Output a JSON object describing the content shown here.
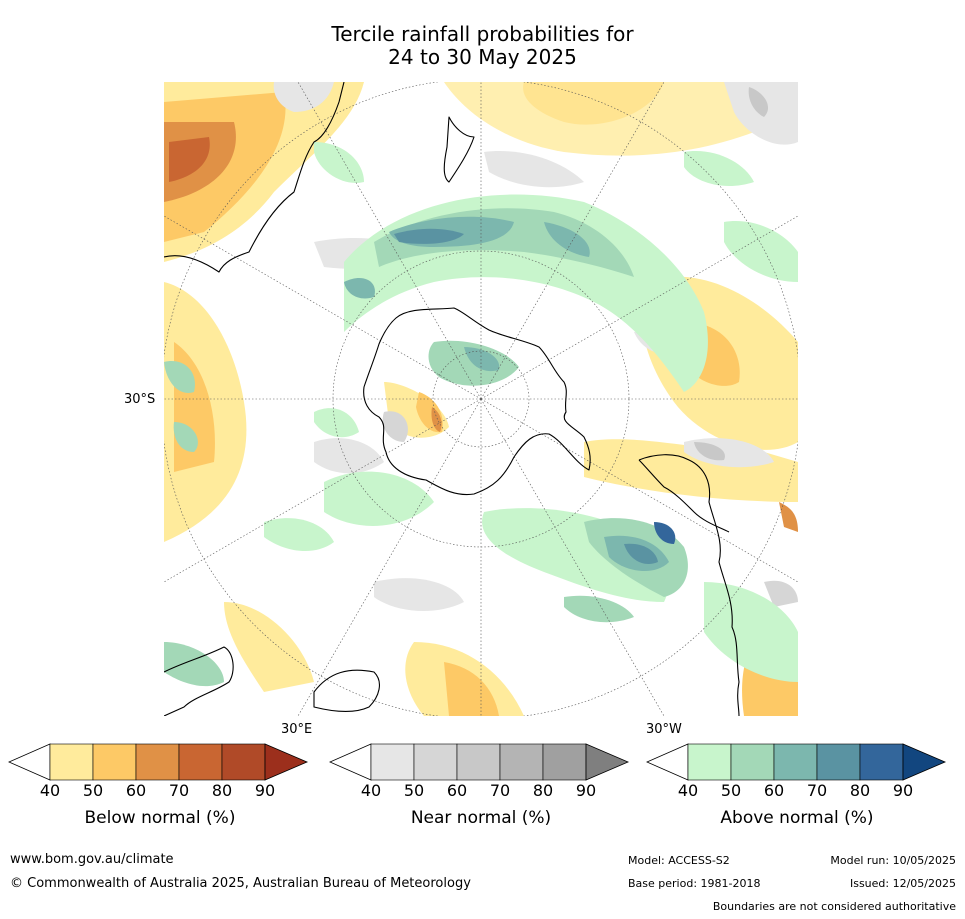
{
  "title": {
    "line1": "Tercile rainfall probabilities for",
    "line2": "24 to 30 May 2025"
  },
  "map": {
    "lat_label": "30°S",
    "lon_label_east": "30°E",
    "lon_label_west": "30°W"
  },
  "colorbars": [
    {
      "name": "Below normal (%)",
      "ticks": [
        "40",
        "50",
        "60",
        "70",
        "80",
        "90"
      ],
      "colors": [
        "#ffffff",
        "#ffeb9c",
        "#fdc966",
        "#e09146",
        "#c96632",
        "#b04a28",
        "#9c2f1c"
      ]
    },
    {
      "name": "Near normal (%)",
      "ticks": [
        "40",
        "50",
        "60",
        "70",
        "80",
        "90"
      ],
      "colors": [
        "#ffffff",
        "#e6e6e6",
        "#d6d6d6",
        "#c8c8c8",
        "#b4b4b4",
        "#a0a0a0",
        "#7f7f7f"
      ]
    },
    {
      "name": "Above normal (%)",
      "ticks": [
        "40",
        "50",
        "60",
        "70",
        "80",
        "90"
      ],
      "colors": [
        "#ffffff",
        "#c8f5cc",
        "#a3d8b7",
        "#7cb7ae",
        "#5a93a2",
        "#33669b",
        "#12467f"
      ]
    }
  ],
  "footer": {
    "url": "www.bom.gov.au/climate",
    "copyright": "© Commonwealth of Australia 2025, Australian Bureau of Meteorology",
    "model": "Model: ACCESS-S2",
    "base_period": "Base period: 1981-2018",
    "model_run": "Model run: 10/05/2025",
    "issued": "Issued: 12/05/2025",
    "disclaimer": "Boundaries are not considered authoritative"
  }
}
